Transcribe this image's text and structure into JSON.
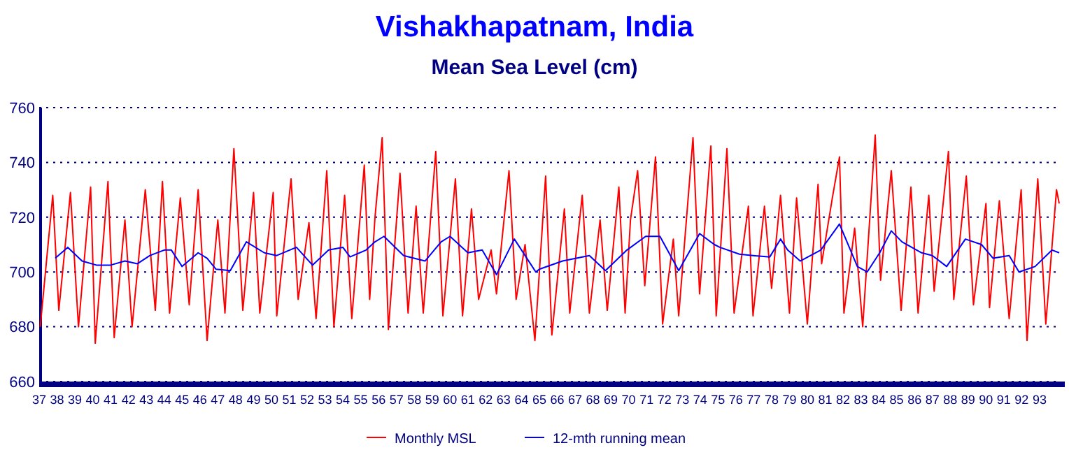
{
  "chart_data": {
    "type": "line",
    "title": "Vishakhapatnam, India",
    "subtitle": "Mean Sea Level (cm)",
    "xlim": [
      37,
      94.1
    ],
    "xticks": [
      37,
      38,
      39,
      40,
      41,
      42,
      43,
      44,
      45,
      46,
      47,
      48,
      49,
      50,
      51,
      52,
      53,
      54,
      55,
      56,
      57,
      58,
      59,
      60,
      61,
      62,
      63,
      64,
      65,
      66,
      67,
      68,
      69,
      70,
      71,
      72,
      73,
      74,
      75,
      76,
      77,
      78,
      79,
      80,
      81,
      82,
      83,
      84,
      85,
      86,
      87,
      88,
      89,
      90,
      91,
      92,
      93
    ],
    "ylim": [
      660,
      760
    ],
    "yticks": [
      660,
      680,
      700,
      720,
      740,
      760
    ],
    "grid": "y",
    "legend": "bottom",
    "line_style": "solid",
    "marker": "none",
    "series": [
      {
        "name": "Monthly MSL",
        "color": "#ff0000",
        "x": [
          37.06,
          37.76,
          38.1,
          38.75,
          39.2,
          39.88,
          40.14,
          40.85,
          41.2,
          41.8,
          42.2,
          42.94,
          43.5,
          43.9,
          44.3,
          44.9,
          45.4,
          45.9,
          46.4,
          47.0,
          47.4,
          47.9,
          48.4,
          49.0,
          49.35,
          50.1,
          50.3,
          51.1,
          51.5,
          52.1,
          52.5,
          53.1,
          53.5,
          54.1,
          54.5,
          55.2,
          55.5,
          55.8,
          56.2,
          56.55,
          57.2,
          57.65,
          58.1,
          58.5,
          59.2,
          59.6,
          60.3,
          60.7,
          61.2,
          61.6,
          62.3,
          62.6,
          63.3,
          63.7,
          64.2,
          64.75,
          65.35,
          65.7,
          66.4,
          66.7,
          67.4,
          67.8,
          68.4,
          68.8,
          69.45,
          69.8,
          70.1,
          70.5,
          70.9,
          71.5,
          71.9,
          72.5,
          72.8,
          73.6,
          73.97,
          74.6,
          74.9,
          75.5,
          75.9,
          76.7,
          76.96,
          77.6,
          78.0,
          78.5,
          79.0,
          79.4,
          80.0,
          80.6,
          80.8,
          81.4,
          81.8,
          82.05,
          82.65,
          83.1,
          83.8,
          84.1,
          84.7,
          85.25,
          85.8,
          86.2,
          86.8,
          87.1,
          87.9,
          88.2,
          88.9,
          89.3,
          90.0,
          90.2,
          90.75,
          91.3,
          91.97,
          92.3,
          92.9,
          93.35,
          93.95,
          94.1
        ],
        "values": [
          680,
          728,
          686,
          729,
          680,
          731,
          674,
          733,
          676,
          719,
          680,
          730,
          686,
          733,
          685,
          727,
          688,
          730,
          675,
          719,
          685,
          745,
          686,
          729,
          685,
          729,
          684,
          734,
          690,
          718,
          683,
          737,
          680,
          728,
          683,
          739,
          690,
          720,
          749,
          679,
          736,
          685,
          724,
          685,
          744,
          684,
          734,
          684,
          723,
          690,
          708,
          692,
          737,
          690,
          710,
          675,
          735,
          677,
          723,
          685,
          728,
          685,
          719,
          686,
          731,
          685,
          719,
          737,
          695,
          742,
          681,
          712,
          684,
          749,
          692,
          746,
          684,
          745,
          685,
          724,
          684,
          724,
          694,
          728,
          685,
          727,
          681,
          732,
          703,
          727,
          742,
          685,
          716,
          680,
          750,
          697,
          737,
          686,
          731,
          685,
          728,
          693,
          744,
          690,
          735,
          688,
          725,
          687,
          726,
          683,
          730,
          675,
          734,
          681,
          730,
          725
        ]
      },
      {
        "name": "12-mth running mean",
        "color": "#0000ff",
        "x": [
          37.9,
          38.6,
          39.4,
          40.2,
          41.0,
          41.8,
          42.5,
          43.2,
          44.0,
          44.4,
          45.0,
          45.9,
          46.4,
          46.9,
          47.7,
          48.6,
          49.6,
          50.3,
          51.4,
          52.3,
          53.2,
          54.0,
          54.4,
          55.3,
          55.8,
          56.3,
          57.4,
          58.6,
          59.5,
          60.0,
          61.0,
          61.8,
          62.6,
          63.6,
          64.8,
          65.0,
          66.3,
          67.8,
          68.7,
          69.9,
          70.95,
          71.75,
          72.8,
          73.97,
          74.8,
          75.1,
          76.2,
          76.96,
          77.9,
          78.5,
          78.9,
          79.6,
          80.75,
          81.8,
          82.8,
          83.35,
          84.05,
          84.7,
          85.3,
          86.4,
          87.0,
          87.8,
          88.85,
          89.75,
          90.4,
          91.3,
          91.85,
          92.75,
          93.7,
          94.1
        ],
        "values": [
          705,
          709,
          704,
          702.5,
          702.5,
          704,
          703,
          706,
          708,
          708,
          702,
          707,
          705,
          701,
          700.5,
          711,
          707,
          706,
          709,
          702.5,
          708,
          709,
          705.5,
          708,
          711,
          713,
          706,
          704,
          711,
          713,
          707,
          708,
          699,
          712,
          700,
          701,
          704,
          706,
          700.5,
          708,
          713,
          713,
          700.5,
          714,
          710,
          709,
          706.5,
          706,
          705.5,
          712,
          708,
          704,
          708,
          717.5,
          702,
          700,
          707,
          715,
          711,
          707,
          706,
          702,
          712,
          710,
          705,
          706,
          700,
          702,
          708,
          707
        ]
      }
    ]
  }
}
